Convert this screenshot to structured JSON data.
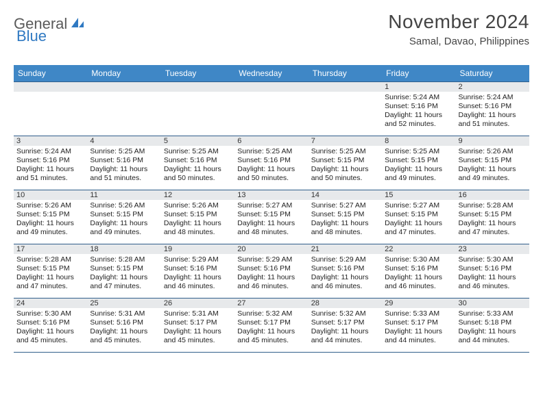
{
  "brand": {
    "word1": "General",
    "word2": "Blue"
  },
  "title": "November 2024",
  "location": "Samal, Davao, Philippines",
  "colors": {
    "header_bg": "#3f87c6",
    "header_text": "#ffffff",
    "row_border": "#2f5d8a",
    "daynum_bg": "#e7e9eb",
    "brand_gray": "#5a5a5a",
    "brand_blue": "#2f79c2"
  },
  "dayNames": [
    "Sunday",
    "Monday",
    "Tuesday",
    "Wednesday",
    "Thursday",
    "Friday",
    "Saturday"
  ],
  "weeks": [
    [
      null,
      null,
      null,
      null,
      null,
      {
        "n": "1",
        "sunrise": "Sunrise: 5:24 AM",
        "sunset": "Sunset: 5:16 PM",
        "daylight": "Daylight: 11 hours and 52 minutes."
      },
      {
        "n": "2",
        "sunrise": "Sunrise: 5:24 AM",
        "sunset": "Sunset: 5:16 PM",
        "daylight": "Daylight: 11 hours and 51 minutes."
      }
    ],
    [
      {
        "n": "3",
        "sunrise": "Sunrise: 5:24 AM",
        "sunset": "Sunset: 5:16 PM",
        "daylight": "Daylight: 11 hours and 51 minutes."
      },
      {
        "n": "4",
        "sunrise": "Sunrise: 5:25 AM",
        "sunset": "Sunset: 5:16 PM",
        "daylight": "Daylight: 11 hours and 51 minutes."
      },
      {
        "n": "5",
        "sunrise": "Sunrise: 5:25 AM",
        "sunset": "Sunset: 5:16 PM",
        "daylight": "Daylight: 11 hours and 50 minutes."
      },
      {
        "n": "6",
        "sunrise": "Sunrise: 5:25 AM",
        "sunset": "Sunset: 5:16 PM",
        "daylight": "Daylight: 11 hours and 50 minutes."
      },
      {
        "n": "7",
        "sunrise": "Sunrise: 5:25 AM",
        "sunset": "Sunset: 5:15 PM",
        "daylight": "Daylight: 11 hours and 50 minutes."
      },
      {
        "n": "8",
        "sunrise": "Sunrise: 5:25 AM",
        "sunset": "Sunset: 5:15 PM",
        "daylight": "Daylight: 11 hours and 49 minutes."
      },
      {
        "n": "9",
        "sunrise": "Sunrise: 5:26 AM",
        "sunset": "Sunset: 5:15 PM",
        "daylight": "Daylight: 11 hours and 49 minutes."
      }
    ],
    [
      {
        "n": "10",
        "sunrise": "Sunrise: 5:26 AM",
        "sunset": "Sunset: 5:15 PM",
        "daylight": "Daylight: 11 hours and 49 minutes."
      },
      {
        "n": "11",
        "sunrise": "Sunrise: 5:26 AM",
        "sunset": "Sunset: 5:15 PM",
        "daylight": "Daylight: 11 hours and 49 minutes."
      },
      {
        "n": "12",
        "sunrise": "Sunrise: 5:26 AM",
        "sunset": "Sunset: 5:15 PM",
        "daylight": "Daylight: 11 hours and 48 minutes."
      },
      {
        "n": "13",
        "sunrise": "Sunrise: 5:27 AM",
        "sunset": "Sunset: 5:15 PM",
        "daylight": "Daylight: 11 hours and 48 minutes."
      },
      {
        "n": "14",
        "sunrise": "Sunrise: 5:27 AM",
        "sunset": "Sunset: 5:15 PM",
        "daylight": "Daylight: 11 hours and 48 minutes."
      },
      {
        "n": "15",
        "sunrise": "Sunrise: 5:27 AM",
        "sunset": "Sunset: 5:15 PM",
        "daylight": "Daylight: 11 hours and 47 minutes."
      },
      {
        "n": "16",
        "sunrise": "Sunrise: 5:28 AM",
        "sunset": "Sunset: 5:15 PM",
        "daylight": "Daylight: 11 hours and 47 minutes."
      }
    ],
    [
      {
        "n": "17",
        "sunrise": "Sunrise: 5:28 AM",
        "sunset": "Sunset: 5:15 PM",
        "daylight": "Daylight: 11 hours and 47 minutes."
      },
      {
        "n": "18",
        "sunrise": "Sunrise: 5:28 AM",
        "sunset": "Sunset: 5:15 PM",
        "daylight": "Daylight: 11 hours and 47 minutes."
      },
      {
        "n": "19",
        "sunrise": "Sunrise: 5:29 AM",
        "sunset": "Sunset: 5:16 PM",
        "daylight": "Daylight: 11 hours and 46 minutes."
      },
      {
        "n": "20",
        "sunrise": "Sunrise: 5:29 AM",
        "sunset": "Sunset: 5:16 PM",
        "daylight": "Daylight: 11 hours and 46 minutes."
      },
      {
        "n": "21",
        "sunrise": "Sunrise: 5:29 AM",
        "sunset": "Sunset: 5:16 PM",
        "daylight": "Daylight: 11 hours and 46 minutes."
      },
      {
        "n": "22",
        "sunrise": "Sunrise: 5:30 AM",
        "sunset": "Sunset: 5:16 PM",
        "daylight": "Daylight: 11 hours and 46 minutes."
      },
      {
        "n": "23",
        "sunrise": "Sunrise: 5:30 AM",
        "sunset": "Sunset: 5:16 PM",
        "daylight": "Daylight: 11 hours and 46 minutes."
      }
    ],
    [
      {
        "n": "24",
        "sunrise": "Sunrise: 5:30 AM",
        "sunset": "Sunset: 5:16 PM",
        "daylight": "Daylight: 11 hours and 45 minutes."
      },
      {
        "n": "25",
        "sunrise": "Sunrise: 5:31 AM",
        "sunset": "Sunset: 5:16 PM",
        "daylight": "Daylight: 11 hours and 45 minutes."
      },
      {
        "n": "26",
        "sunrise": "Sunrise: 5:31 AM",
        "sunset": "Sunset: 5:17 PM",
        "daylight": "Daylight: 11 hours and 45 minutes."
      },
      {
        "n": "27",
        "sunrise": "Sunrise: 5:32 AM",
        "sunset": "Sunset: 5:17 PM",
        "daylight": "Daylight: 11 hours and 45 minutes."
      },
      {
        "n": "28",
        "sunrise": "Sunrise: 5:32 AM",
        "sunset": "Sunset: 5:17 PM",
        "daylight": "Daylight: 11 hours and 44 minutes."
      },
      {
        "n": "29",
        "sunrise": "Sunrise: 5:33 AM",
        "sunset": "Sunset: 5:17 PM",
        "daylight": "Daylight: 11 hours and 44 minutes."
      },
      {
        "n": "30",
        "sunrise": "Sunrise: 5:33 AM",
        "sunset": "Sunset: 5:18 PM",
        "daylight": "Daylight: 11 hours and 44 minutes."
      }
    ]
  ]
}
